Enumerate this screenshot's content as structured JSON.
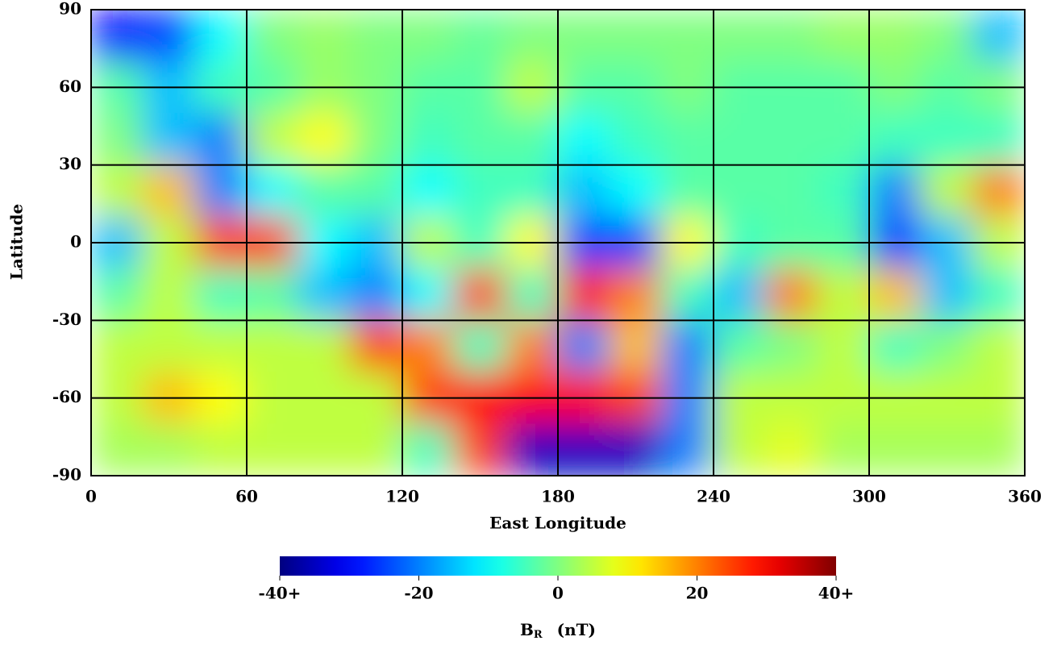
{
  "chart_data": {
    "type": "heatmap",
    "x_label": "East Longitude",
    "y_label": "Latitude",
    "x": [
      10,
      30,
      50,
      70,
      90,
      110,
      130,
      150,
      170,
      190,
      210,
      230,
      250,
      270,
      290,
      310,
      330,
      350
    ],
    "y": [
      80,
      60,
      40,
      20,
      0,
      -20,
      -40,
      -60,
      -80
    ],
    "z": [
      [
        -30,
        -25,
        -10,
        0,
        2,
        0,
        0,
        -2,
        0,
        0,
        0,
        0,
        0,
        0,
        2,
        2,
        0,
        -15
      ],
      [
        -3,
        -15,
        -5,
        -3,
        2,
        0,
        -3,
        -3,
        5,
        -3,
        -3,
        0,
        -3,
        -3,
        -3,
        0,
        -3,
        0
      ],
      [
        0,
        -15,
        -20,
        5,
        10,
        0,
        -5,
        -3,
        -3,
        -10,
        -5,
        -3,
        -3,
        -3,
        -3,
        -5,
        -5,
        -5
      ],
      [
        5,
        15,
        -20,
        -10,
        -3,
        -3,
        -10,
        -5,
        -5,
        -15,
        -10,
        -3,
        -3,
        -3,
        -5,
        -20,
        5,
        20
      ],
      [
        -15,
        5,
        25,
        25,
        -10,
        -15,
        5,
        -5,
        10,
        -25,
        -25,
        10,
        -5,
        -3,
        -3,
        -25,
        -15,
        5
      ],
      [
        -3,
        5,
        -5,
        -3,
        -15,
        -20,
        -10,
        25,
        -5,
        30,
        20,
        -5,
        -15,
        20,
        5,
        15,
        -15,
        -5
      ],
      [
        5,
        5,
        5,
        5,
        5,
        25,
        20,
        -5,
        20,
        -20,
        15,
        -20,
        -3,
        0,
        5,
        -5,
        0,
        5
      ],
      [
        5,
        15,
        10,
        5,
        5,
        5,
        25,
        30,
        30,
        30,
        25,
        -20,
        5,
        5,
        5,
        5,
        5,
        5
      ],
      [
        3,
        3,
        5,
        5,
        5,
        5,
        -5,
        25,
        -35,
        -35,
        -35,
        -20,
        5,
        8,
        3,
        3,
        3,
        3
      ]
    ],
    "xlim": [
      0,
      360
    ],
    "ylim": [
      -90,
      90
    ],
    "xticks": [
      0,
      60,
      120,
      180,
      240,
      300,
      360
    ],
    "yticks": [
      -90,
      -60,
      -30,
      0,
      30,
      60,
      90
    ],
    "grid": true,
    "colormap": "jet",
    "zlim": [
      -40,
      40
    ],
    "colorbar_ticks": [
      {
        "value": -40,
        "label": "-40+"
      },
      -20,
      0,
      20,
      {
        "value": 40,
        "label": "40+"
      }
    ],
    "colorbar_label": {
      "symbol": "B",
      "subscript": "R",
      "unit": "(nT)"
    }
  }
}
